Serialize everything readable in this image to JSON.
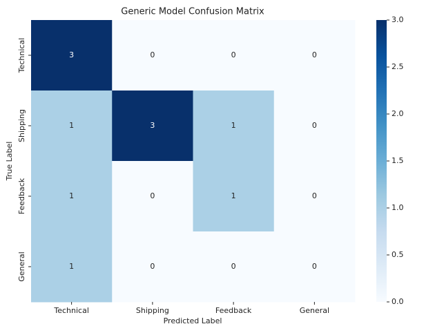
{
  "chart_data": {
    "type": "heatmap",
    "title": "Generic Model Confusion Matrix",
    "xlabel": "Predicted Label",
    "ylabel": "True Label",
    "x_categories": [
      "Technical",
      "Shipping",
      "Feedback",
      "General"
    ],
    "y_categories": [
      "Technical",
      "Shipping",
      "Feedback",
      "General"
    ],
    "values": [
      [
        3,
        0,
        0,
        0
      ],
      [
        1,
        3,
        1,
        0
      ],
      [
        1,
        0,
        1,
        0
      ],
      [
        1,
        0,
        0,
        0
      ]
    ],
    "colormap": "Blues",
    "zlim": [
      0,
      3
    ],
    "zticks": [
      {
        "value": 0,
        "label": "0.0"
      },
      0.5,
      {
        "value": 1,
        "label": "1.0"
      },
      1.5,
      {
        "value": 2,
        "label": "2.0"
      },
      2.5,
      {
        "value": 3,
        "label": "3.0"
      }
    ]
  }
}
